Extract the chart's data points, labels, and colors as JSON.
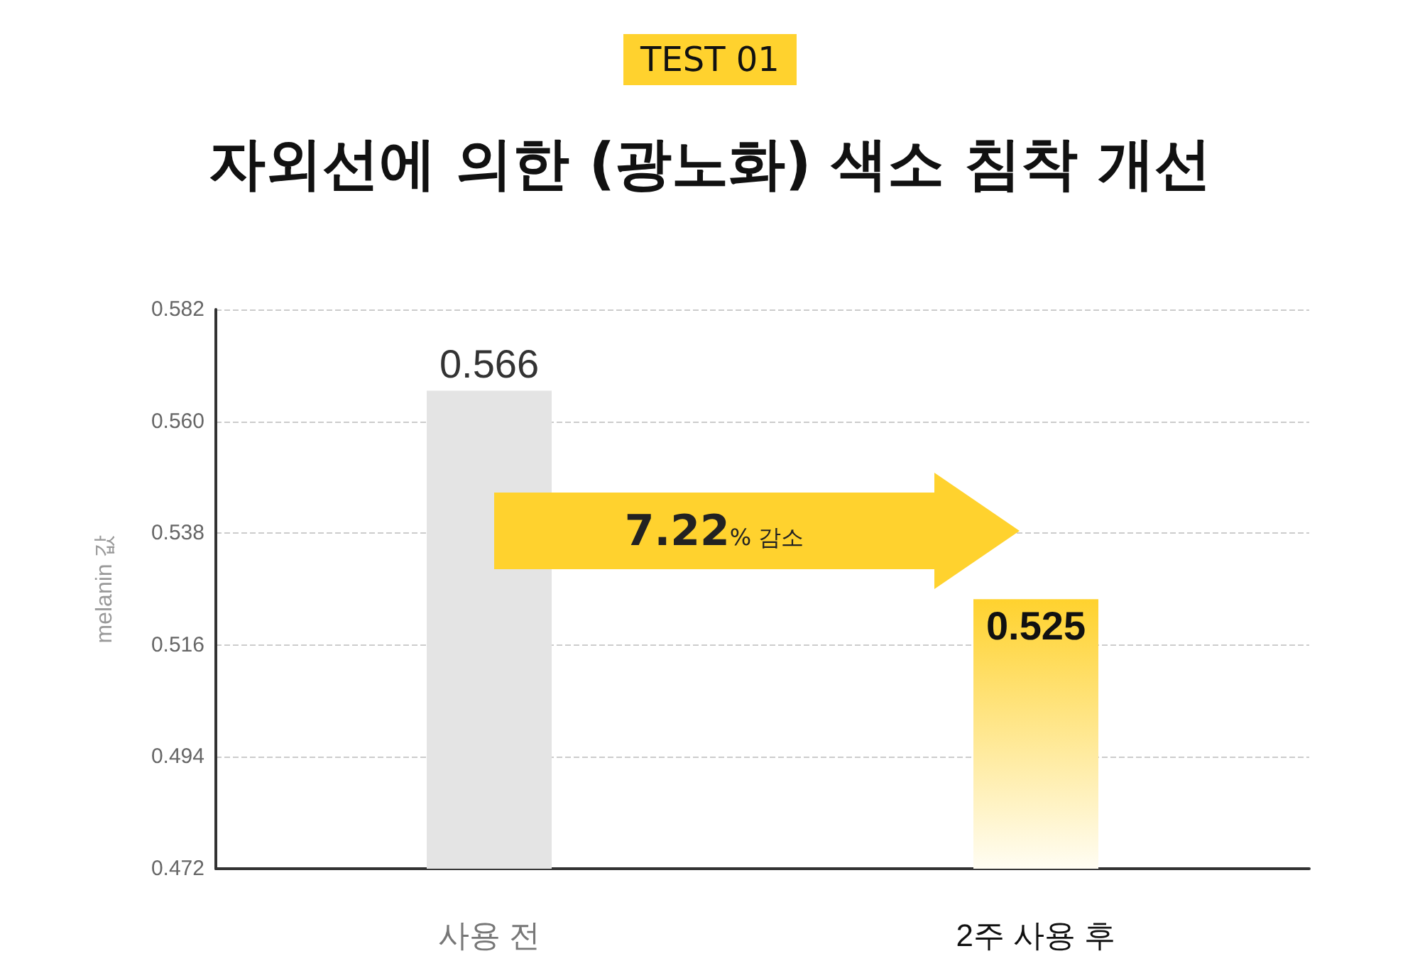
{
  "chart_data": {
    "type": "bar",
    "title": "자외선에 의한 (광노화) 색소 침착 개선",
    "subtitle": "TEST 01",
    "ylabel": "melanin 값",
    "categories": [
      "사용 전",
      "2주 사용 후"
    ],
    "values": [
      0.566,
      0.525
    ],
    "colors": [
      "#e4e4e4",
      "#ffd22e"
    ],
    "ylim": [
      0.472,
      0.582
    ],
    "yticks": [
      0.472,
      0.494,
      0.516,
      0.538,
      {
        "value": 0.56,
        "label": "0.560"
      },
      0.582
    ],
    "grid": "y",
    "data_labels": true,
    "annotations": [
      "7.22% 감소"
    ]
  }
}
